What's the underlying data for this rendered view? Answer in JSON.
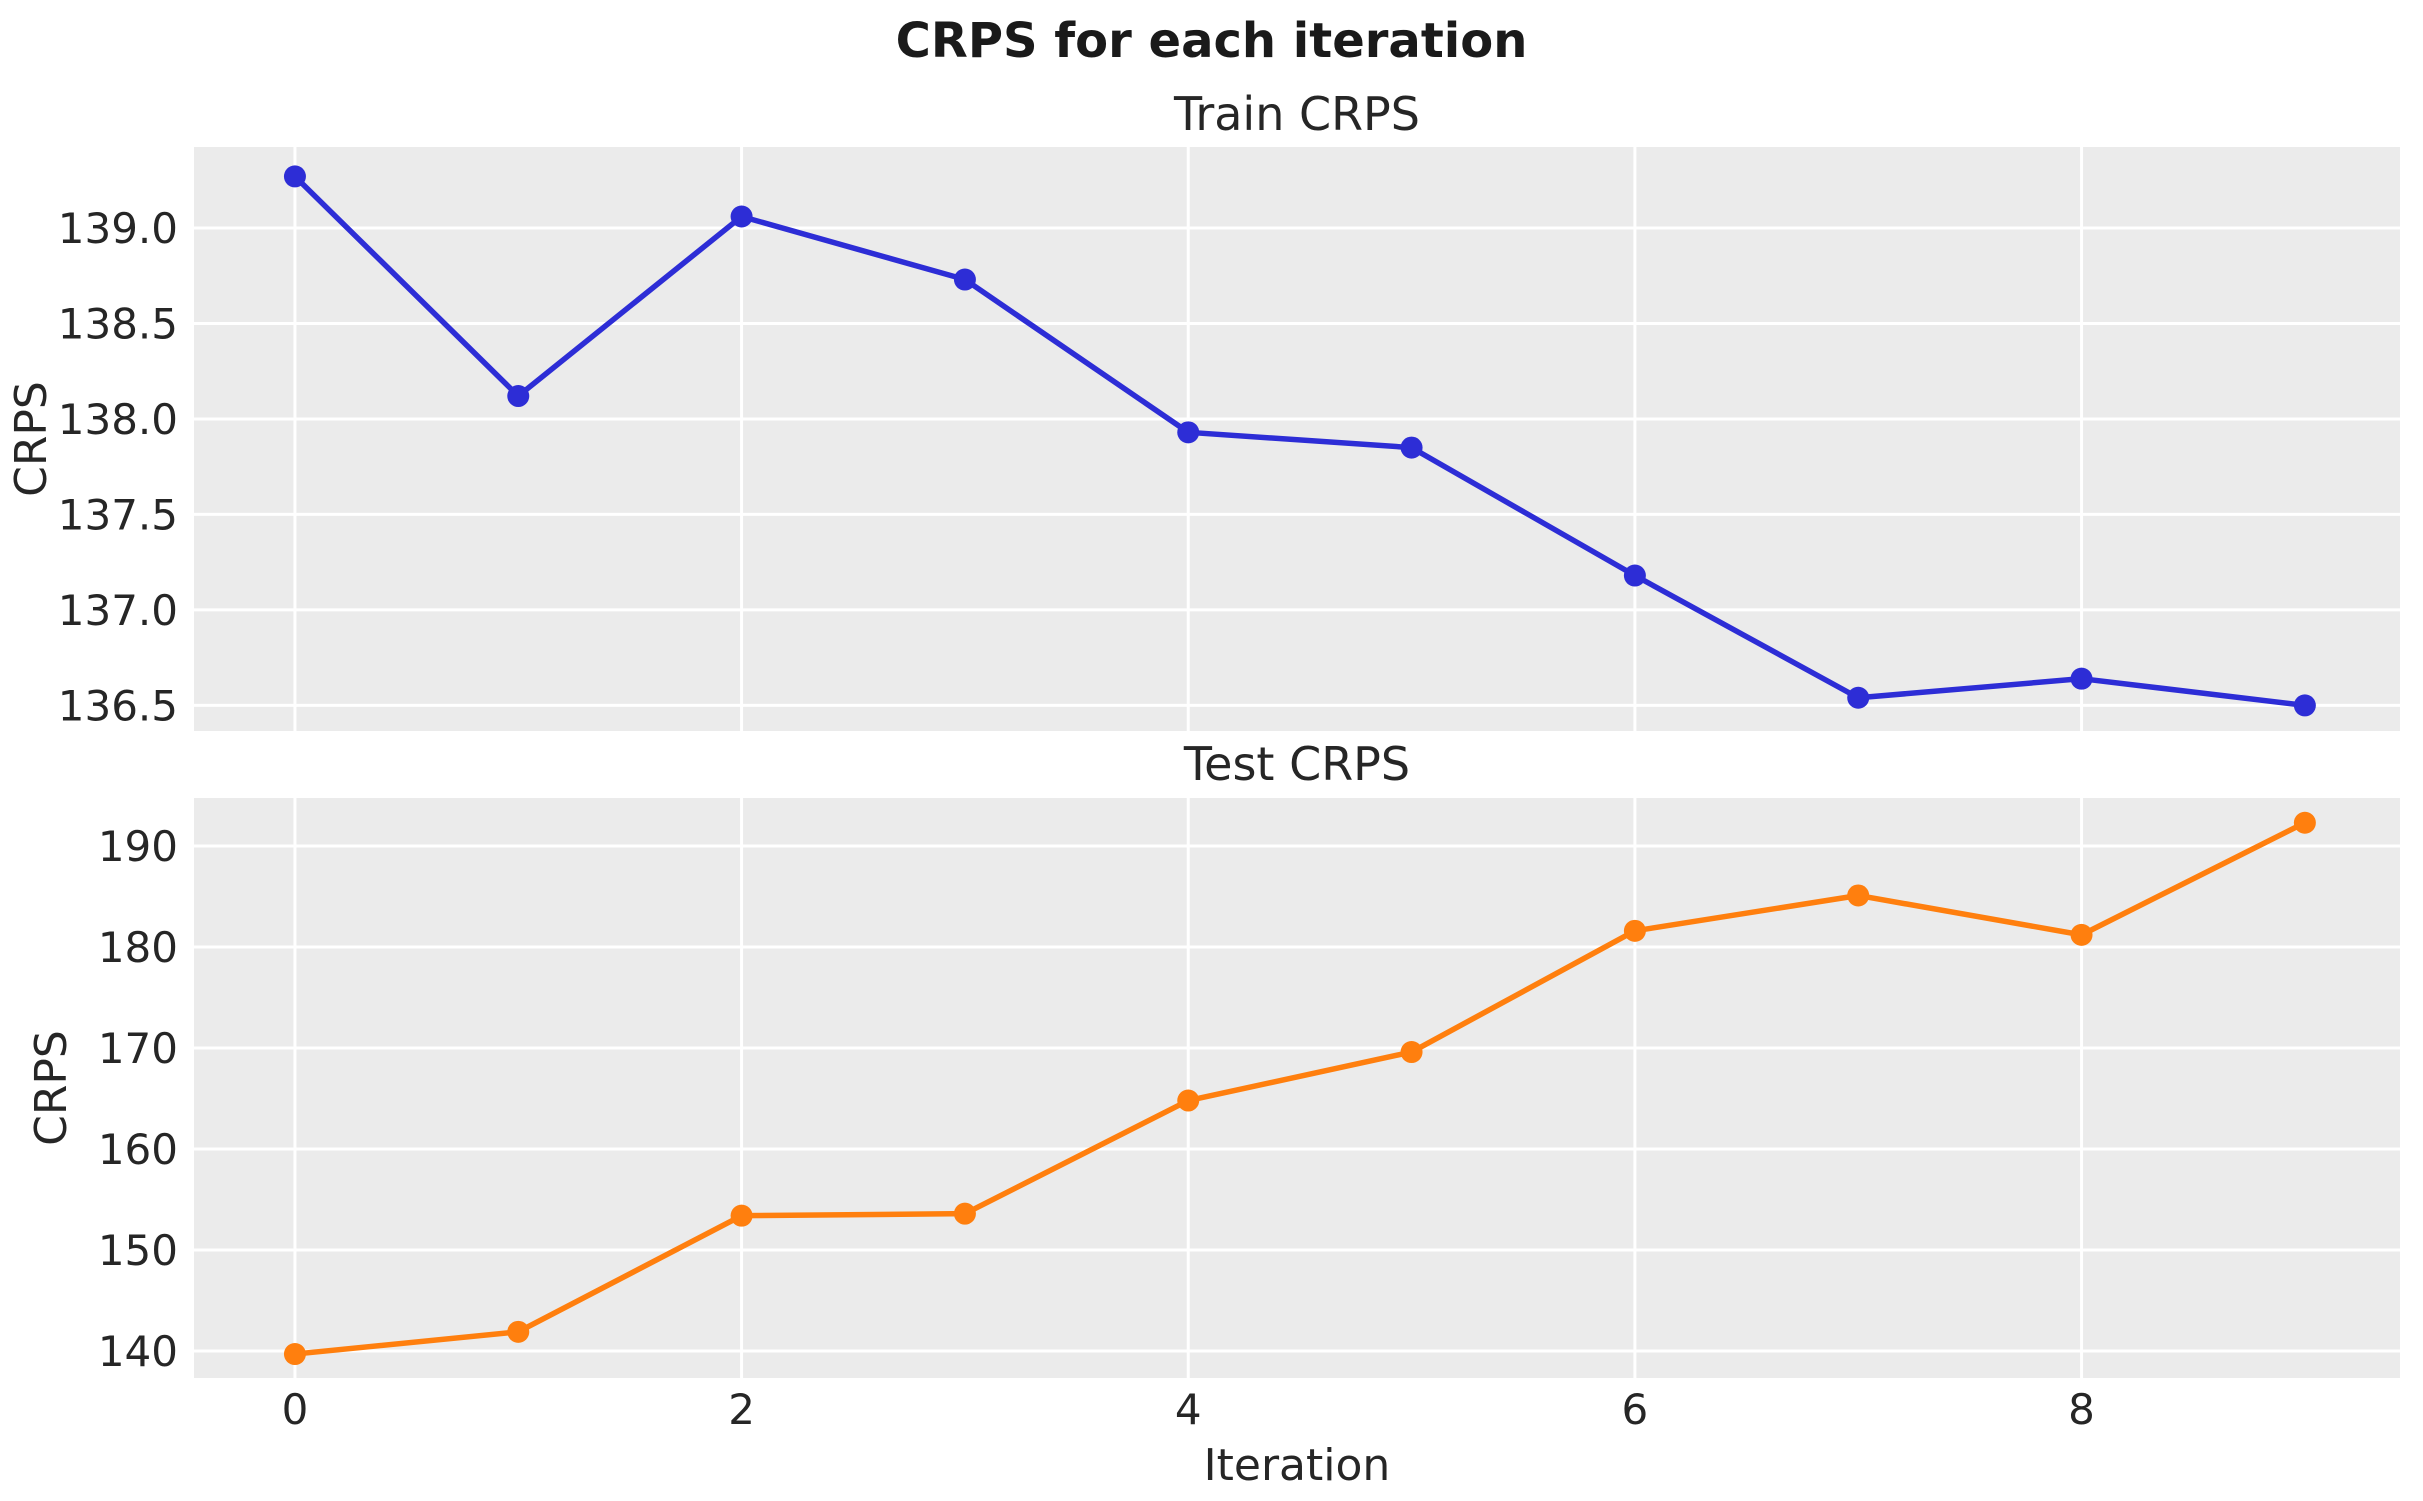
{
  "figure": {
    "suptitle": "CRPS for each iteration",
    "background_color": "#ffffff",
    "panel_color": "#ebebeb",
    "grid_color": "#ffffff",
    "text_color": "#262626"
  },
  "chart_data": [
    {
      "type": "line",
      "title": "Train CRPS",
      "ylabel": "CRPS",
      "xlabel": "",
      "legend": "none",
      "grid": true,
      "line_color": "#2d2dd6",
      "marker": "circle",
      "x": [
        0,
        1,
        2,
        3,
        4,
        5,
        6,
        7,
        8,
        9
      ],
      "values": [
        139.27,
        138.12,
        139.06,
        138.73,
        137.93,
        137.85,
        137.18,
        136.54,
        136.64,
        136.5
      ],
      "xlim": [
        -0.452,
        9.426
      ],
      "ylim": [
        136.366,
        139.424
      ],
      "yticks": [
        139.0,
        138.5,
        138.0,
        137.5,
        137.0,
        136.5
      ],
      "ytick_labels": [
        "139.0",
        "138.5",
        "138.0",
        "137.5",
        "137.0",
        "136.5"
      ],
      "xticks": [
        0,
        2,
        4,
        6,
        8
      ],
      "xtick_labels": []
    },
    {
      "type": "line",
      "title": "Test CRPS",
      "ylabel": "CRPS",
      "xlabel": "Iteration",
      "legend": "none",
      "grid": true,
      "line_color": "#ff7f0e",
      "marker": "circle",
      "x": [
        0,
        1,
        2,
        3,
        4,
        5,
        6,
        7,
        8,
        9
      ],
      "values": [
        139.7,
        141.9,
        153.4,
        153.6,
        164.8,
        169.6,
        181.6,
        185.1,
        181.2,
        192.3
      ],
      "xlim": [
        -0.452,
        9.426
      ],
      "ylim": [
        137.33,
        194.75
      ],
      "yticks": [
        190,
        180,
        170,
        160,
        150,
        140
      ],
      "ytick_labels": [
        "190",
        "180",
        "170",
        "160",
        "150",
        "140"
      ],
      "xticks": [
        0,
        2,
        4,
        6,
        8
      ],
      "xtick_labels": [
        "0",
        "2",
        "4",
        "6",
        "8"
      ]
    }
  ]
}
